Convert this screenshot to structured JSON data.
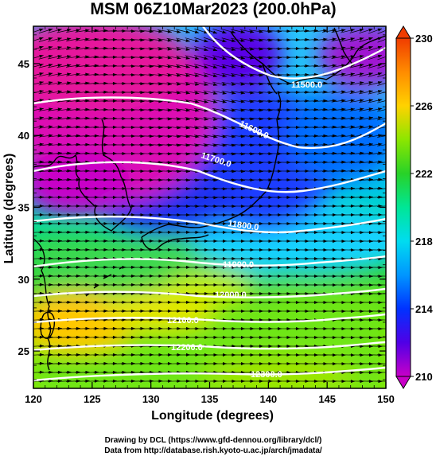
{
  "title": "MSM 06Z10Mar2023 (200.0hPa)",
  "x_axis": {
    "label": "Longitude (degrees)",
    "range": [
      120,
      150
    ],
    "ticks": [
      "120",
      "125",
      "130",
      "135",
      "140",
      "145",
      "150"
    ]
  },
  "y_axis": {
    "label": "Latitude  (degrees)",
    "range": [
      22.4,
      47.6
    ],
    "ticks": [
      "25",
      "30",
      "35",
      "40",
      "45"
    ]
  },
  "colorbar": {
    "min": 210,
    "max": 230,
    "ticks": [
      "210",
      "214",
      "218",
      "222",
      "226",
      "230"
    ],
    "colors": [
      "#c800c8",
      "#3c00f0",
      "#0050ff",
      "#00c8ff",
      "#00e6a0",
      "#28d228",
      "#78e600",
      "#c8f000",
      "#ffd200",
      "#ff9600",
      "#f03c00"
    ]
  },
  "contours": [
    {
      "label": "11500.0"
    },
    {
      "label": "11600.0"
    },
    {
      "label": "11700.0"
    },
    {
      "label": "11800.0"
    },
    {
      "label": "11900.0"
    },
    {
      "label": "12000.0"
    },
    {
      "label": "12100.0"
    },
    {
      "label": "12200.0"
    },
    {
      "label": "12300.0"
    }
  ],
  "credits": {
    "line1": "Drawing by DCL (https://www.gfd-dennou.org/library/dcl/)",
    "line2": "Data from http://database.rish.kyoto-u.ac.jp/arch/jmadata/"
  }
}
